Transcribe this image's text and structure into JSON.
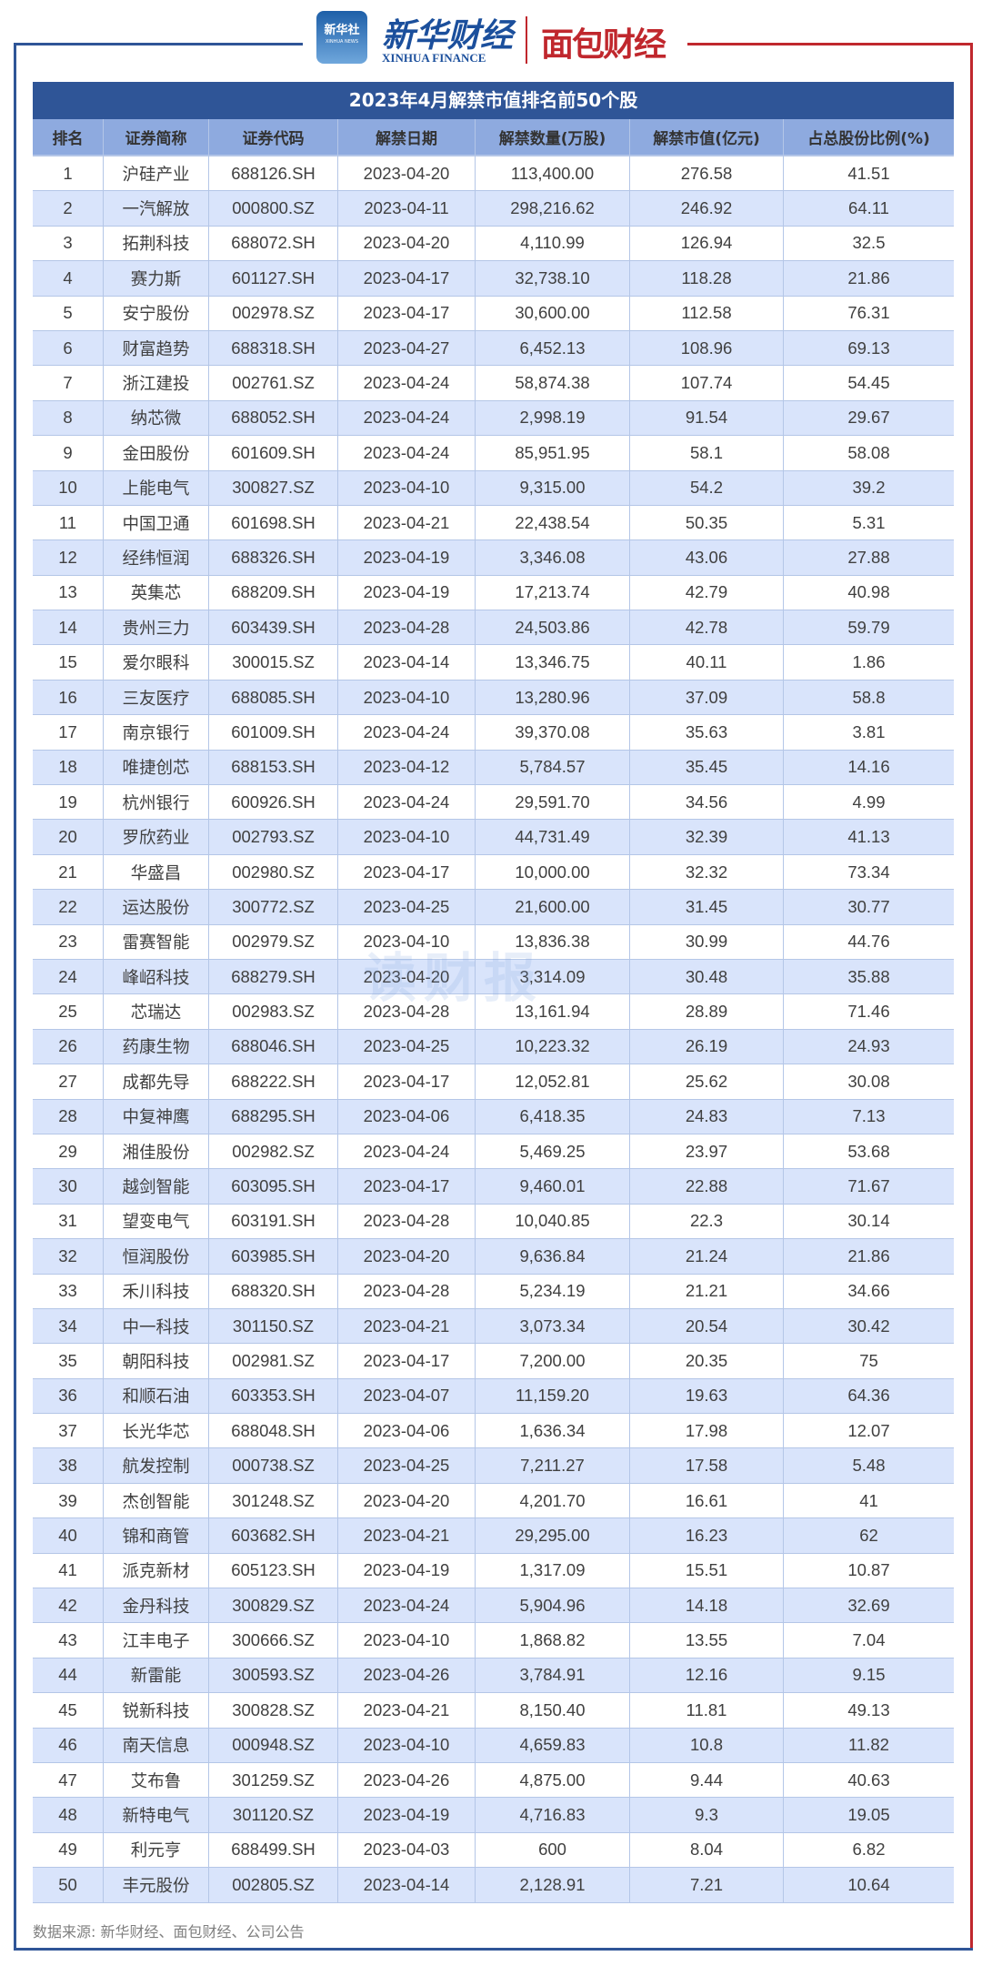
{
  "header": {
    "logo_xinhua_badge": "新华社",
    "logo_xinhua_badge_sub": "XINHUA NEWS",
    "logo_xinhua_finance": "新华财经",
    "logo_xinhua_finance_en": "XINHUA FINANCE",
    "logo_mianbao": "面包财经"
  },
  "colors": {
    "title_bg": "#2f5597",
    "header_bg": "#8eaadf",
    "stripe": "#d9e4fb",
    "frame_blue": "#2f5597",
    "frame_red": "#c0272d"
  },
  "table": {
    "title": "2023年4月解禁市值排名前50个股",
    "columns": [
      "排名",
      "证券简称",
      "证券代码",
      "解禁日期",
      "解禁数量(万股)",
      "解禁市值(亿元)",
      "占总股份比例(%)"
    ],
    "rows": [
      [
        "1",
        "沪硅产业",
        "688126.SH",
        "2023-04-20",
        "113,400.00",
        "276.58",
        "41.51"
      ],
      [
        "2",
        "一汽解放",
        "000800.SZ",
        "2023-04-11",
        "298,216.62",
        "246.92",
        "64.11"
      ],
      [
        "3",
        "拓荆科技",
        "688072.SH",
        "2023-04-20",
        "4,110.99",
        "126.94",
        "32.5"
      ],
      [
        "4",
        "赛力斯",
        "601127.SH",
        "2023-04-17",
        "32,738.10",
        "118.28",
        "21.86"
      ],
      [
        "5",
        "安宁股份",
        "002978.SZ",
        "2023-04-17",
        "30,600.00",
        "112.58",
        "76.31"
      ],
      [
        "6",
        "财富趋势",
        "688318.SH",
        "2023-04-27",
        "6,452.13",
        "108.96",
        "69.13"
      ],
      [
        "7",
        "浙江建投",
        "002761.SZ",
        "2023-04-24",
        "58,874.38",
        "107.74",
        "54.45"
      ],
      [
        "8",
        "纳芯微",
        "688052.SH",
        "2023-04-24",
        "2,998.19",
        "91.54",
        "29.67"
      ],
      [
        "9",
        "金田股份",
        "601609.SH",
        "2023-04-24",
        "85,951.95",
        "58.1",
        "58.08"
      ],
      [
        "10",
        "上能电气",
        "300827.SZ",
        "2023-04-10",
        "9,315.00",
        "54.2",
        "39.2"
      ],
      [
        "11",
        "中国卫通",
        "601698.SH",
        "2023-04-21",
        "22,438.54",
        "50.35",
        "5.31"
      ],
      [
        "12",
        "经纬恒润",
        "688326.SH",
        "2023-04-19",
        "3,346.08",
        "43.06",
        "27.88"
      ],
      [
        "13",
        "英集芯",
        "688209.SH",
        "2023-04-19",
        "17,213.74",
        "42.79",
        "40.98"
      ],
      [
        "14",
        "贵州三力",
        "603439.SH",
        "2023-04-28",
        "24,503.86",
        "42.78",
        "59.79"
      ],
      [
        "15",
        "爱尔眼科",
        "300015.SZ",
        "2023-04-14",
        "13,346.75",
        "40.11",
        "1.86"
      ],
      [
        "16",
        "三友医疗",
        "688085.SH",
        "2023-04-10",
        "13,280.96",
        "37.09",
        "58.8"
      ],
      [
        "17",
        "南京银行",
        "601009.SH",
        "2023-04-24",
        "39,370.08",
        "35.63",
        "3.81"
      ],
      [
        "18",
        "唯捷创芯",
        "688153.SH",
        "2023-04-12",
        "5,784.57",
        "35.45",
        "14.16"
      ],
      [
        "19",
        "杭州银行",
        "600926.SH",
        "2023-04-24",
        "29,591.70",
        "34.56",
        "4.99"
      ],
      [
        "20",
        "罗欣药业",
        "002793.SZ",
        "2023-04-10",
        "44,731.49",
        "32.39",
        "41.13"
      ],
      [
        "21",
        "华盛昌",
        "002980.SZ",
        "2023-04-17",
        "10,000.00",
        "32.32",
        "73.34"
      ],
      [
        "22",
        "运达股份",
        "300772.SZ",
        "2023-04-25",
        "21,600.00",
        "31.45",
        "30.77"
      ],
      [
        "23",
        "雷赛智能",
        "002979.SZ",
        "2023-04-10",
        "13,836.38",
        "30.99",
        "44.76"
      ],
      [
        "24",
        "峰岹科技",
        "688279.SH",
        "2023-04-20",
        "3,314.09",
        "30.48",
        "35.88"
      ],
      [
        "25",
        "芯瑞达",
        "002983.SZ",
        "2023-04-28",
        "13,161.94",
        "28.89",
        "71.46"
      ],
      [
        "26",
        "药康生物",
        "688046.SH",
        "2023-04-25",
        "10,223.32",
        "26.19",
        "24.93"
      ],
      [
        "27",
        "成都先导",
        "688222.SH",
        "2023-04-17",
        "12,052.81",
        "25.62",
        "30.08"
      ],
      [
        "28",
        "中复神鹰",
        "688295.SH",
        "2023-04-06",
        "6,418.35",
        "24.83",
        "7.13"
      ],
      [
        "29",
        "湘佳股份",
        "002982.SZ",
        "2023-04-24",
        "5,469.25",
        "23.97",
        "53.68"
      ],
      [
        "30",
        "越剑智能",
        "603095.SH",
        "2023-04-17",
        "9,460.01",
        "22.88",
        "71.67"
      ],
      [
        "31",
        "望变电气",
        "603191.SH",
        "2023-04-28",
        "10,040.85",
        "22.3",
        "30.14"
      ],
      [
        "32",
        "恒润股份",
        "603985.SH",
        "2023-04-20",
        "9,636.84",
        "21.24",
        "21.86"
      ],
      [
        "33",
        "禾川科技",
        "688320.SH",
        "2023-04-28",
        "5,234.19",
        "21.21",
        "34.66"
      ],
      [
        "34",
        "中一科技",
        "301150.SZ",
        "2023-04-21",
        "3,073.34",
        "20.54",
        "30.42"
      ],
      [
        "35",
        "朝阳科技",
        "002981.SZ",
        "2023-04-17",
        "7,200.00",
        "20.35",
        "75"
      ],
      [
        "36",
        "和顺石油",
        "603353.SH",
        "2023-04-07",
        "11,159.20",
        "19.63",
        "64.36"
      ],
      [
        "37",
        "长光华芯",
        "688048.SH",
        "2023-04-06",
        "1,636.34",
        "17.98",
        "12.07"
      ],
      [
        "38",
        "航发控制",
        "000738.SZ",
        "2023-04-25",
        "7,211.27",
        "17.58",
        "5.48"
      ],
      [
        "39",
        "杰创智能",
        "301248.SZ",
        "2023-04-20",
        "4,201.70",
        "16.61",
        "41"
      ],
      [
        "40",
        "锦和商管",
        "603682.SH",
        "2023-04-21",
        "29,295.00",
        "16.23",
        "62"
      ],
      [
        "41",
        "派克新材",
        "605123.SH",
        "2023-04-19",
        "1,317.09",
        "15.51",
        "10.87"
      ],
      [
        "42",
        "金丹科技",
        "300829.SZ",
        "2023-04-24",
        "5,904.96",
        "14.18",
        "32.69"
      ],
      [
        "43",
        "江丰电子",
        "300666.SZ",
        "2023-04-10",
        "1,868.82",
        "13.55",
        "7.04"
      ],
      [
        "44",
        "新雷能",
        "300593.SZ",
        "2023-04-26",
        "3,784.91",
        "12.16",
        "9.15"
      ],
      [
        "45",
        "锐新科技",
        "300828.SZ",
        "2023-04-21",
        "8,150.40",
        "11.81",
        "49.13"
      ],
      [
        "46",
        "南天信息",
        "000948.SZ",
        "2023-04-10",
        "4,659.83",
        "10.8",
        "11.82"
      ],
      [
        "47",
        "艾布鲁",
        "301259.SZ",
        "2023-04-26",
        "4,875.00",
        "9.44",
        "40.63"
      ],
      [
        "48",
        "新特电气",
        "301120.SZ",
        "2023-04-19",
        "4,716.83",
        "9.3",
        "19.05"
      ],
      [
        "49",
        "利元亨",
        "688499.SH",
        "2023-04-03",
        "600",
        "8.04",
        "6.82"
      ],
      [
        "50",
        "丰元股份",
        "002805.SZ",
        "2023-04-14",
        "2,128.91",
        "7.21",
        "10.64"
      ]
    ]
  },
  "watermark": "读财报",
  "footer": {
    "source": "数据来源: 新华财经、面包财经、公司公告"
  }
}
